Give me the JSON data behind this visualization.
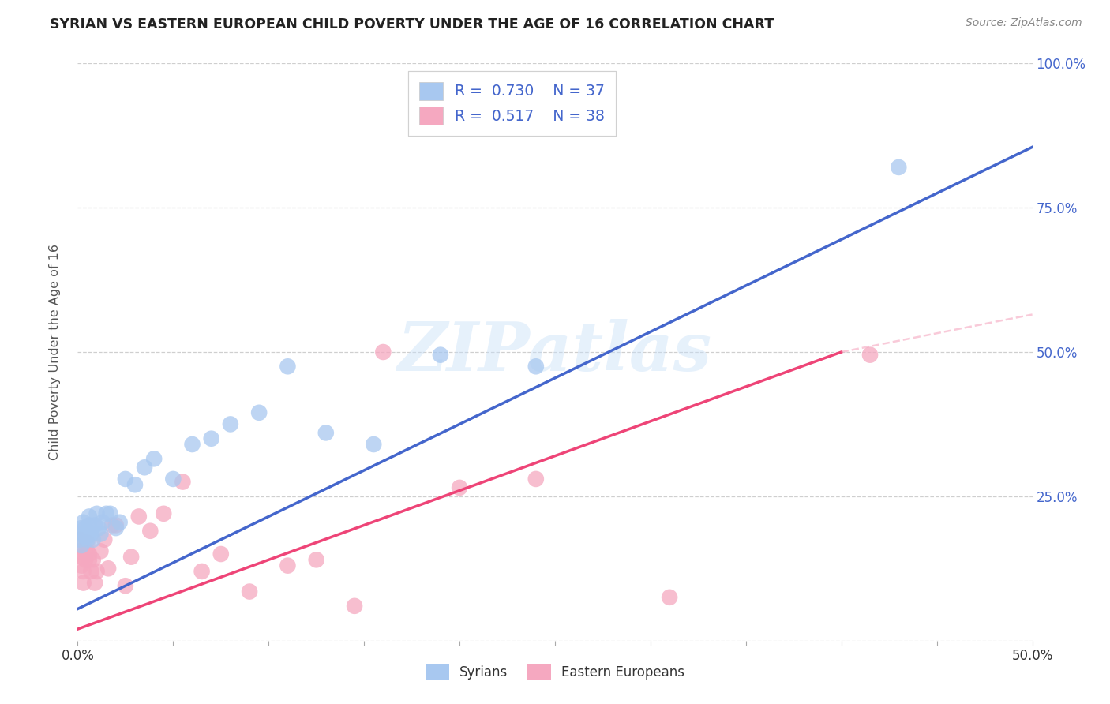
{
  "title": "SYRIAN VS EASTERN EUROPEAN CHILD POVERTY UNDER THE AGE OF 16 CORRELATION CHART",
  "source": "Source: ZipAtlas.com",
  "ylabel": "Child Poverty Under the Age of 16",
  "xlim": [
    0,
    0.5
  ],
  "ylim": [
    0,
    1.0
  ],
  "xticks": [
    0.0,
    0.05,
    0.1,
    0.15,
    0.2,
    0.25,
    0.3,
    0.35,
    0.4,
    0.45,
    0.5
  ],
  "yticks": [
    0.0,
    0.25,
    0.5,
    0.75,
    1.0
  ],
  "ytick_labels": [
    "",
    "25.0%",
    "50.0%",
    "75.0%",
    "100.0%"
  ],
  "legend_r_blue": "0.730",
  "legend_n_blue": "37",
  "legend_r_pink": "0.517",
  "legend_n_pink": "38",
  "legend_label_blue": "Syrians",
  "legend_label_pink": "Eastern Europeans",
  "blue_color": "#A8C8F0",
  "pink_color": "#F5A8C0",
  "blue_line_color": "#4466CC",
  "pink_line_color": "#EE4477",
  "dashed_line_color": "#F5A8C0",
  "background_color": "#FFFFFF",
  "grid_color": "#BBBBBB",
  "watermark": "ZIPatlas",
  "blue_line_x0": 0.0,
  "blue_line_y0": 0.055,
  "blue_line_x1": 0.5,
  "blue_line_y1": 0.855,
  "pink_line_x0": 0.0,
  "pink_line_y0": 0.02,
  "pink_line_x1": 0.4,
  "pink_line_y1": 0.5,
  "dashed_line_x0": 0.4,
  "dashed_line_y0": 0.5,
  "dashed_line_x1": 0.5,
  "dashed_line_y1": 0.565,
  "syrians_x": [
    0.001,
    0.002,
    0.002,
    0.003,
    0.003,
    0.004,
    0.004,
    0.005,
    0.005,
    0.006,
    0.006,
    0.007,
    0.008,
    0.009,
    0.01,
    0.011,
    0.012,
    0.013,
    0.015,
    0.017,
    0.02,
    0.022,
    0.025,
    0.03,
    0.035,
    0.04,
    0.05,
    0.06,
    0.07,
    0.08,
    0.095,
    0.11,
    0.13,
    0.155,
    0.19,
    0.24,
    0.43
  ],
  "syrians_y": [
    0.175,
    0.165,
    0.195,
    0.185,
    0.205,
    0.18,
    0.195,
    0.18,
    0.175,
    0.2,
    0.215,
    0.185,
    0.175,
    0.2,
    0.22,
    0.195,
    0.185,
    0.205,
    0.22,
    0.22,
    0.195,
    0.205,
    0.28,
    0.27,
    0.3,
    0.315,
    0.28,
    0.34,
    0.35,
    0.375,
    0.395,
    0.475,
    0.36,
    0.34,
    0.495,
    0.475,
    0.82
  ],
  "eastern_x": [
    0.001,
    0.001,
    0.002,
    0.002,
    0.003,
    0.003,
    0.004,
    0.004,
    0.005,
    0.005,
    0.006,
    0.006,
    0.007,
    0.008,
    0.009,
    0.01,
    0.012,
    0.014,
    0.016,
    0.018,
    0.02,
    0.025,
    0.028,
    0.032,
    0.038,
    0.045,
    0.055,
    0.065,
    0.075,
    0.09,
    0.11,
    0.125,
    0.145,
    0.16,
    0.2,
    0.24,
    0.31,
    0.415
  ],
  "eastern_y": [
    0.155,
    0.175,
    0.13,
    0.145,
    0.1,
    0.12,
    0.14,
    0.155,
    0.155,
    0.17,
    0.14,
    0.15,
    0.12,
    0.14,
    0.1,
    0.12,
    0.155,
    0.175,
    0.125,
    0.2,
    0.2,
    0.095,
    0.145,
    0.215,
    0.19,
    0.22,
    0.275,
    0.12,
    0.15,
    0.085,
    0.13,
    0.14,
    0.06,
    0.5,
    0.265,
    0.28,
    0.075,
    0.495
  ]
}
